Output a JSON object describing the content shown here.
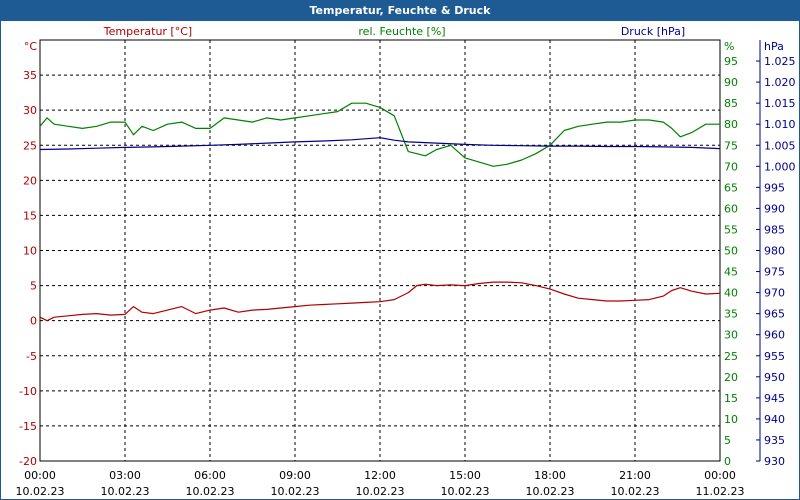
{
  "chart_data": {
    "type": "line",
    "title": "Temperatur, Feuchte & Druck",
    "colors": {
      "temperature": "#b00000",
      "humidity": "#008000",
      "pressure": "#00008b",
      "grid": "#000000"
    },
    "x_ticks": [
      {
        "time": "00:00",
        "date": "10.02.23"
      },
      {
        "time": "03:00",
        "date": "10.02.23"
      },
      {
        "time": "06:00",
        "date": "10.02.23"
      },
      {
        "time": "09:00",
        "date": "10.02.23"
      },
      {
        "time": "12:00",
        "date": "10.02.23"
      },
      {
        "time": "15:00",
        "date": "10.02.23"
      },
      {
        "time": "18:00",
        "date": "10.02.23"
      },
      {
        "time": "21:00",
        "date": "10.02.23"
      },
      {
        "time": "00:00",
        "date": "11.02.23"
      }
    ],
    "x_range_hours": [
      0,
      24
    ],
    "axes": {
      "temperature": {
        "label": "Temperatur [°C]",
        "unit": "°C",
        "min": -20,
        "max": 40,
        "ticks": [
          "-20",
          "-15",
          "-10",
          "-5",
          "0",
          "5",
          "10",
          "15",
          "20",
          "25",
          "30",
          "35"
        ]
      },
      "humidity": {
        "label": "rel. Feuchte [%]",
        "unit": "%",
        "min": 0,
        "max": 100,
        "ticks": [
          "0",
          "5",
          "10",
          "15",
          "20",
          "25",
          "30",
          "35",
          "40",
          "45",
          "50",
          "55",
          "60",
          "65",
          "70",
          "75",
          "80",
          "85",
          "90",
          "95"
        ]
      },
      "pressure": {
        "label": "Druck [hPa]",
        "unit": "hPa",
        "min": 930,
        "max": 1030,
        "ticks": [
          "930",
          "935",
          "940",
          "945",
          "950",
          "955",
          "960",
          "965",
          "970",
          "975",
          "980",
          "985",
          "990",
          "995",
          "1.000",
          "1.005",
          "1.010",
          "1.015",
          "1.020",
          "1.025"
        ]
      }
    },
    "series": [
      {
        "name": "Temperatur [°C]",
        "axis": "temperature",
        "x": [
          0,
          0.25,
          0.5,
          1,
          1.5,
          2,
          2.5,
          3,
          3.3,
          3.6,
          4,
          4.5,
          5,
          5.5,
          6,
          6.5,
          7,
          7.5,
          8,
          8.5,
          9,
          9.5,
          10,
          10.5,
          11,
          11.5,
          12,
          12.5,
          13,
          13.3,
          13.6,
          14,
          14.5,
          15,
          15.5,
          16,
          16.5,
          17,
          17.5,
          18,
          18.5,
          19,
          19.5,
          20,
          20.5,
          21,
          21.5,
          22,
          22.3,
          22.6,
          23,
          23.5,
          24
        ],
        "values": [
          0.5,
          0,
          0.5,
          0.7,
          0.9,
          1.0,
          0.8,
          0.9,
          2.0,
          1.2,
          1.0,
          1.5,
          2.0,
          1.0,
          1.5,
          1.8,
          1.2,
          1.5,
          1.6,
          1.8,
          2.0,
          2.2,
          2.3,
          2.4,
          2.5,
          2.6,
          2.7,
          3.0,
          4.0,
          5.0,
          5.2,
          5.0,
          5.1,
          5.0,
          5.3,
          5.5,
          5.5,
          5.4,
          5.0,
          4.5,
          3.8,
          3.2,
          3.0,
          2.8,
          2.8,
          2.9,
          3.0,
          3.5,
          4.3,
          4.7,
          4.2,
          3.8,
          3.9
        ]
      },
      {
        "name": "rel. Feuchte [%]",
        "axis": "humidity",
        "x": [
          0,
          0.25,
          0.5,
          1,
          1.5,
          2,
          2.5,
          3,
          3.3,
          3.6,
          4,
          4.5,
          5,
          5.5,
          6,
          6.5,
          7,
          7.5,
          8,
          8.5,
          9,
          9.5,
          10,
          10.5,
          11,
          11.5,
          12,
          12.5,
          13,
          13.3,
          13.6,
          14,
          14.5,
          15,
          15.5,
          16,
          16.5,
          17,
          17.5,
          18,
          18.5,
          19,
          19.5,
          20,
          20.5,
          21,
          21.5,
          22,
          22.3,
          22.6,
          23,
          23.5,
          24
        ],
        "values": [
          79.5,
          81.5,
          80.0,
          79.5,
          79.0,
          79.5,
          80.5,
          80.5,
          77.5,
          79.5,
          78.5,
          80.0,
          80.5,
          79.0,
          79.0,
          81.5,
          81.0,
          80.5,
          81.5,
          81.0,
          81.5,
          82.0,
          82.5,
          83.0,
          85.0,
          85.0,
          84.0,
          82.0,
          73.5,
          73.0,
          72.5,
          74.0,
          75.0,
          72.0,
          71.0,
          70.0,
          70.5,
          71.5,
          73.0,
          75.0,
          78.5,
          79.5,
          80.0,
          80.5,
          80.5,
          81.0,
          81.0,
          80.5,
          79.0,
          77.0,
          78.0,
          80.0,
          80.0
        ]
      },
      {
        "name": "Druck [hPa]",
        "axis": "pressure",
        "x": [
          0,
          1,
          2,
          3,
          4,
          5,
          6,
          7,
          8,
          9,
          10,
          11,
          12,
          12.5,
          13,
          14,
          15,
          16,
          17,
          18,
          19,
          20,
          21,
          22,
          23,
          24
        ],
        "values": [
          1004.0,
          1004.1,
          1004.3,
          1004.5,
          1004.6,
          1004.8,
          1005.0,
          1005.2,
          1005.5,
          1005.8,
          1006.0,
          1006.3,
          1006.8,
          1006.2,
          1005.8,
          1005.5,
          1005.2,
          1005.0,
          1004.9,
          1004.8,
          1004.8,
          1004.7,
          1004.7,
          1004.6,
          1004.5,
          1004.2
        ]
      }
    ]
  }
}
